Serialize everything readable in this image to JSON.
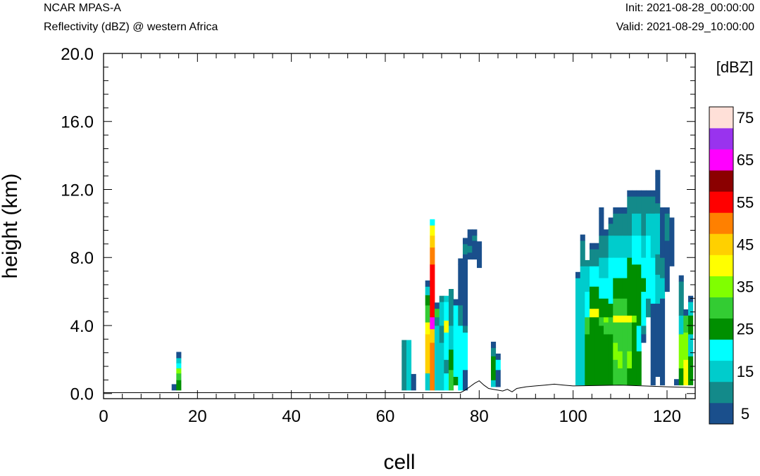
{
  "header": {
    "model": "NCAR MPAS-A",
    "field": "Reflectivity (dBZ) @ western Africa",
    "init": "Init: 2021-08-28_00:00:00",
    "valid": "Valid: 2021-08-29_10:00:00"
  },
  "chart_data": {
    "type": "heatmap",
    "xlabel": "cell",
    "ylabel": "height (km)",
    "xlim": [
      0,
      126
    ],
    "ylim": [
      -0.3,
      20.0
    ],
    "x_ticks": [
      "0",
      "20",
      "40",
      "60",
      "80",
      "100",
      "120"
    ],
    "y_ticks": [
      "0.0",
      "4.0",
      "8.0",
      "12.0",
      "16.0",
      "20.0"
    ],
    "colorbar": {
      "unit": "[dBZ]",
      "labels": [
        "5",
        "15",
        "25",
        "35",
        "45",
        "55",
        "65",
        "75"
      ],
      "levels": [
        5,
        10,
        15,
        20,
        25,
        30,
        35,
        40,
        45,
        50,
        55,
        60,
        65,
        70,
        75
      ],
      "colors": [
        "#1a4f8c",
        "#138a8a",
        "#00cccc",
        "#00ffff",
        "#008f00",
        "#33cc33",
        "#80ff00",
        "#ffff00",
        "#ffd000",
        "#ff8000",
        "#ff0000",
        "#8b0000",
        "#ff00ff",
        "#9933ee",
        "#ffe0d8"
      ]
    },
    "columns": [
      {
        "x": 15,
        "cells": [
          [
            0.2,
            5
          ]
        ]
      },
      {
        "x": 16,
        "cells": [
          [
            0.2,
            25
          ],
          [
            0.8,
            30
          ],
          [
            1.2,
            35
          ],
          [
            1.5,
            20
          ],
          [
            1.8,
            15
          ],
          [
            2.1,
            5
          ]
        ]
      },
      {
        "x": 64,
        "cells": [
          [
            0.2,
            10
          ],
          [
            2.8,
            10
          ]
        ]
      },
      {
        "x": 65,
        "cells": [
          [
            0.2,
            15
          ],
          [
            2.8,
            15
          ]
        ]
      },
      {
        "x": 66,
        "cells": [
          [
            0.2,
            5
          ],
          [
            0.8,
            5
          ]
        ]
      },
      {
        "x": 69,
        "cells": [
          [
            0.2,
            15
          ],
          [
            1.2,
            45
          ],
          [
            3.5,
            40
          ],
          [
            4.2,
            30
          ],
          [
            5.2,
            25
          ],
          [
            5.8,
            15
          ],
          [
            6.3,
            5
          ]
        ]
      },
      {
        "x": 70,
        "cells": [
          [
            0.2,
            50
          ],
          [
            3.0,
            45
          ],
          [
            3.8,
            65
          ],
          [
            4.5,
            55
          ],
          [
            7.6,
            50
          ],
          [
            8.6,
            45
          ],
          [
            9.3,
            40
          ],
          [
            9.9,
            20
          ]
        ]
      },
      {
        "x": 71,
        "cells": [
          [
            0.2,
            15
          ],
          [
            4.0,
            10
          ],
          [
            4.5,
            30
          ],
          [
            5.0,
            5
          ]
        ]
      },
      {
        "x": 72,
        "cells": [
          [
            0.2,
            15
          ],
          [
            3.0,
            10
          ],
          [
            4.0,
            15
          ],
          [
            5.4,
            10
          ]
        ]
      },
      {
        "x": 73,
        "cells": [
          [
            0.2,
            20
          ],
          [
            1.2,
            10
          ],
          [
            2.0,
            20
          ],
          [
            3.6,
            40
          ],
          [
            4.3,
            20
          ],
          [
            5.4,
            15
          ]
        ]
      },
      {
        "x": 74,
        "cells": [
          [
            0.2,
            30
          ],
          [
            1.4,
            25
          ],
          [
            2.6,
            15
          ],
          [
            4.0,
            10
          ],
          [
            5.8,
            10
          ]
        ]
      },
      {
        "x": 75,
        "cells": [
          [
            0.5,
            25
          ],
          [
            1.0,
            20
          ],
          [
            2.6,
            20
          ],
          [
            4.6,
            20
          ],
          [
            5.2,
            5
          ]
        ]
      },
      {
        "x": 76,
        "cells": [
          [
            0.2,
            20
          ],
          [
            4.0,
            10
          ],
          [
            5.2,
            5
          ],
          [
            7.6,
            5
          ]
        ]
      },
      {
        "x": 77,
        "cells": [
          [
            0.2,
            5
          ],
          [
            1.4,
            20
          ],
          [
            3.6,
            10
          ],
          [
            4.0,
            5
          ],
          [
            7.7,
            5
          ],
          [
            8.2,
            10
          ],
          [
            8.8,
            5
          ]
        ]
      },
      {
        "x": 78,
        "cells": [
          [
            7.9,
            5
          ],
          [
            8.3,
            10
          ],
          [
            8.7,
            5
          ],
          [
            9.3,
            5
          ]
        ]
      },
      {
        "x": 79,
        "cells": [
          [
            7.9,
            5
          ],
          [
            9.0,
            10
          ],
          [
            9.3,
            5
          ]
        ]
      },
      {
        "x": 80,
        "cells": [
          [
            7.4,
            5
          ],
          [
            8.6,
            5
          ]
        ]
      },
      {
        "x": 83,
        "cells": [
          [
            0.4,
            15
          ],
          [
            0.8,
            25
          ],
          [
            2.2,
            10
          ],
          [
            2.7,
            5
          ]
        ]
      },
      {
        "x": 84,
        "cells": [
          [
            0.4,
            5
          ],
          [
            1.4,
            20
          ],
          [
            2.0,
            5
          ]
        ]
      },
      {
        "x": 101,
        "cells": [
          [
            0.5,
            15
          ],
          [
            6.8,
            5
          ]
        ]
      },
      {
        "x": 102,
        "cells": [
          [
            0.5,
            15
          ],
          [
            7.5,
            10
          ],
          [
            9.0,
            5
          ]
        ]
      },
      {
        "x": 103,
        "cells": [
          [
            0.5,
            25
          ],
          [
            3.5,
            30
          ],
          [
            4.5,
            20
          ],
          [
            6.0,
            15
          ],
          [
            7.5,
            10
          ]
        ]
      },
      {
        "x": 104,
        "cells": [
          [
            0.5,
            25
          ],
          [
            4.5,
            40
          ],
          [
            5.0,
            25
          ],
          [
            6.3,
            20
          ],
          [
            7.5,
            10
          ],
          [
            8.5,
            5
          ]
        ]
      },
      {
        "x": 105,
        "cells": [
          [
            0.5,
            25
          ],
          [
            4.5,
            40
          ],
          [
            5.0,
            25
          ],
          [
            6.3,
            20
          ],
          [
            7.5,
            10
          ],
          [
            8.5,
            5
          ]
        ]
      },
      {
        "x": 106,
        "cells": [
          [
            0.5,
            25
          ],
          [
            4.0,
            30
          ],
          [
            4.5,
            25
          ],
          [
            5.6,
            20
          ],
          [
            6.8,
            15
          ],
          [
            8.0,
            10
          ],
          [
            9.3,
            5
          ],
          [
            10.6,
            5
          ]
        ]
      },
      {
        "x": 107,
        "cells": [
          [
            0.5,
            25
          ],
          [
            3.5,
            30
          ],
          [
            4.2,
            35
          ],
          [
            4.5,
            25
          ],
          [
            5.6,
            20
          ],
          [
            6.8,
            15
          ],
          [
            8.0,
            10
          ],
          [
            9.3,
            5
          ]
        ]
      },
      {
        "x": 108,
        "cells": [
          [
            0.5,
            25
          ],
          [
            3.5,
            30
          ],
          [
            4.5,
            25
          ],
          [
            5.3,
            20
          ],
          [
            6.8,
            20
          ],
          [
            8.0,
            15
          ],
          [
            9.3,
            10
          ],
          [
            10.0,
            5
          ]
        ]
      },
      {
        "x": 109,
        "cells": [
          [
            0.5,
            30
          ],
          [
            2.0,
            35
          ],
          [
            3.0,
            30
          ],
          [
            4.2,
            40
          ],
          [
            4.6,
            30
          ],
          [
            5.6,
            25
          ],
          [
            6.8,
            20
          ],
          [
            8.0,
            15
          ],
          [
            9.3,
            10
          ],
          [
            10.6,
            5
          ]
        ]
      },
      {
        "x": 110,
        "cells": [
          [
            0.5,
            30
          ],
          [
            1.5,
            35
          ],
          [
            2.5,
            30
          ],
          [
            4.2,
            40
          ],
          [
            4.6,
            30
          ],
          [
            5.6,
            25
          ],
          [
            6.8,
            20
          ],
          [
            8.0,
            15
          ],
          [
            9.3,
            10
          ],
          [
            10.6,
            5
          ]
        ]
      },
      {
        "x": 111,
        "cells": [
          [
            0.5,
            30
          ],
          [
            4.2,
            40
          ],
          [
            4.6,
            30
          ],
          [
            5.6,
            25
          ],
          [
            6.8,
            20
          ],
          [
            8.0,
            15
          ],
          [
            9.3,
            10
          ],
          [
            10.6,
            5
          ]
        ]
      },
      {
        "x": 112,
        "cells": [
          [
            0.5,
            25
          ],
          [
            1.5,
            35
          ],
          [
            2.5,
            30
          ],
          [
            4.2,
            40
          ],
          [
            4.6,
            25
          ],
          [
            6.8,
            25
          ],
          [
            8.0,
            15
          ],
          [
            9.3,
            10
          ],
          [
            10.6,
            10
          ],
          [
            11.6,
            5
          ]
        ]
      },
      {
        "x": 113,
        "cells": [
          [
            0.5,
            25
          ],
          [
            4.2,
            35
          ],
          [
            4.6,
            25
          ],
          [
            7.6,
            20
          ],
          [
            9.3,
            15
          ],
          [
            10.6,
            10
          ],
          [
            11.6,
            5
          ]
        ]
      },
      {
        "x": 114,
        "cells": [
          [
            0.5,
            25
          ],
          [
            2.5,
            20
          ],
          [
            4.0,
            25
          ],
          [
            7.6,
            20
          ],
          [
            9.3,
            15
          ],
          [
            10.6,
            10
          ],
          [
            11.6,
            5
          ]
        ]
      },
      {
        "x": 115,
        "cells": [
          [
            3.0,
            5
          ],
          [
            3.5,
            10
          ],
          [
            4.0,
            20
          ],
          [
            6.0,
            25
          ],
          [
            6.8,
            20
          ],
          [
            8.0,
            15
          ],
          [
            9.3,
            10
          ],
          [
            11.6,
            5
          ]
        ]
      },
      {
        "x": 116,
        "cells": [
          [
            4.5,
            10
          ],
          [
            5.6,
            20
          ],
          [
            9.3,
            15
          ],
          [
            10.6,
            10
          ],
          [
            11.6,
            5
          ]
        ]
      },
      {
        "x": 117,
        "cells": [
          [
            0.5,
            5
          ],
          [
            5.3,
            20
          ],
          [
            8.0,
            15
          ],
          [
            10.6,
            10
          ],
          [
            11.6,
            5
          ]
        ]
      },
      {
        "x": 118,
        "cells": [
          [
            1.0,
            5
          ],
          [
            5.3,
            15
          ],
          [
            7.0,
            10
          ],
          [
            8.2,
            15
          ],
          [
            10.6,
            10
          ],
          [
            11.2,
            5
          ],
          [
            12.8,
            5
          ]
        ]
      },
      {
        "x": 119,
        "cells": [
          [
            0.5,
            5
          ],
          [
            5.6,
            15
          ],
          [
            6.8,
            10
          ],
          [
            8.0,
            5
          ],
          [
            10.6,
            5
          ]
        ]
      },
      {
        "x": 120,
        "cells": [
          [
            6.0,
            5
          ],
          [
            9.0,
            10
          ],
          [
            10.6,
            5
          ]
        ]
      },
      {
        "x": 121,
        "cells": [
          [
            7.5,
            5
          ],
          [
            10.0,
            5
          ]
        ]
      },
      {
        "x": 122,
        "cells": [
          [
            0.5,
            5
          ]
        ]
      },
      {
        "x": 123,
        "cells": [
          [
            0.5,
            25
          ],
          [
            1.5,
            35
          ],
          [
            3.5,
            15
          ],
          [
            4.6,
            10
          ],
          [
            6.6,
            5
          ]
        ]
      },
      {
        "x": 124,
        "cells": [
          [
            0.5,
            40
          ],
          [
            2.0,
            35
          ],
          [
            3.6,
            30
          ],
          [
            4.6,
            5
          ]
        ]
      },
      {
        "x": 125,
        "cells": [
          [
            0.5,
            25
          ],
          [
            2.2,
            15
          ],
          [
            3.5,
            25
          ],
          [
            4.6,
            15
          ],
          [
            5.4,
            5
          ]
        ]
      }
    ],
    "terrain": [
      [
        0,
        0.05
      ],
      [
        76,
        0.05
      ],
      [
        77,
        0.2
      ],
      [
        78,
        0.4
      ],
      [
        79,
        0.6
      ],
      [
        80,
        0.75
      ],
      [
        81,
        0.5
      ],
      [
        82,
        0.3
      ],
      [
        83,
        0.25
      ],
      [
        84,
        0.2
      ],
      [
        85,
        0.15
      ],
      [
        86,
        0.25
      ],
      [
        87,
        0.1
      ],
      [
        88,
        0.3
      ],
      [
        90,
        0.4
      ],
      [
        92,
        0.45
      ],
      [
        94,
        0.5
      ],
      [
        96,
        0.55
      ],
      [
        98,
        0.5
      ],
      [
        100,
        0.45
      ],
      [
        110,
        0.5
      ],
      [
        115,
        0.45
      ],
      [
        120,
        0.4
      ],
      [
        126,
        0.35
      ]
    ]
  }
}
